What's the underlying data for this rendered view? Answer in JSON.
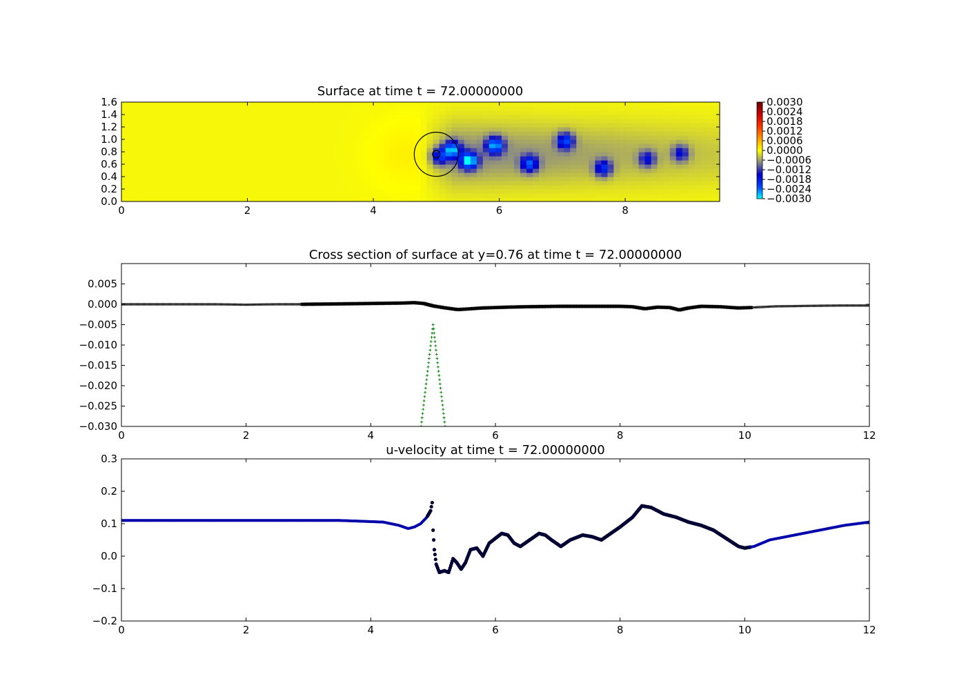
{
  "chart_data": [
    {
      "type": "heatmap",
      "title": "Surface at time t =    72.00000000",
      "xlim": [
        0,
        9.5
      ],
      "ylim": [
        0,
        1.6
      ],
      "xticks": [
        "0",
        "2",
        "4",
        "6",
        "8"
      ],
      "yticks": [
        "0.0",
        "0.2",
        "0.4",
        "0.6",
        "0.8",
        "1.0",
        "1.2",
        "1.4",
        "1.6"
      ],
      "colorbar": {
        "range": [
          -0.003,
          0.003
        ],
        "ticks": [
          "0.0030",
          "0.0024",
          "0.0018",
          "0.0012",
          "0.0006",
          "0.0000",
          "−0.0006",
          "−0.0012",
          "−0.0018",
          "−0.0024",
          "−0.0030"
        ],
        "colors": [
          "#00ffff",
          "#0044ff",
          "#0000cc",
          "#888888",
          "#ffff00",
          "#ff9900",
          "#ff3300",
          "#cc0000",
          "#660000"
        ]
      },
      "field": {
        "background": -5e-05,
        "wake_start_x": 4.7,
        "wake_end_x": 9.5,
        "vortices": [
          {
            "x": 5.05,
            "y": 0.73,
            "value": -0.0016
          },
          {
            "x": 5.25,
            "y": 0.84,
            "value": -0.0022
          },
          {
            "x": 5.52,
            "y": 0.66,
            "value": -0.0026
          },
          {
            "x": 5.93,
            "y": 0.91,
            "value": -0.0022
          },
          {
            "x": 6.48,
            "y": 0.61,
            "value": -0.0018
          },
          {
            "x": 7.05,
            "y": 0.98,
            "value": -0.0018
          },
          {
            "x": 7.65,
            "y": 0.54,
            "value": -0.0016
          },
          {
            "x": 8.35,
            "y": 0.69,
            "value": -0.0012
          },
          {
            "x": 8.88,
            "y": 0.78,
            "value": -0.0012
          }
        ],
        "circle": {
          "x": 5.0,
          "y": 0.76,
          "radius": 0.35
        },
        "inner_circle": {
          "x": 5.0,
          "y": 0.76,
          "radius": 0.06
        }
      }
    },
    {
      "type": "scatter",
      "title": "Cross section of surface at y=0.76 at time t =    72.00000000",
      "xlim": [
        0,
        12
      ],
      "ylim": [
        -0.03,
        0.01
      ],
      "xticks": [
        "0",
        "2",
        "4",
        "6",
        "8",
        "10",
        "12"
      ],
      "yticks": [
        "0.005",
        "0.000",
        "−0.005",
        "−0.010",
        "−0.015",
        "−0.020",
        "−0.025",
        "−0.030"
      ],
      "series": [
        {
          "marker": "x",
          "color": "#000000",
          "x": [
            0,
            0.5,
            1.0,
            1.5,
            2.0,
            2.5,
            2.9,
            3.5,
            4.0,
            4.5,
            4.7,
            4.85,
            5.0,
            5.2,
            5.4,
            5.6,
            5.8,
            6.0,
            6.2,
            6.5,
            7.0,
            7.5,
            8.0,
            8.2,
            8.4,
            8.6,
            8.8,
            8.95,
            9.1,
            9.3,
            9.6,
            9.9,
            10.1,
            10.5,
            11.0,
            11.5,
            12.0
          ],
          "y": [
            0.0,
            0.0,
            0.0,
            0.0,
            -0.0001,
            0.0,
            0.0,
            0.0001,
            0.0002,
            0.0003,
            0.0004,
            0.0002,
            -0.0004,
            -0.0009,
            -0.0013,
            -0.0011,
            -0.0009,
            -0.0008,
            -0.0007,
            -0.0006,
            -0.0005,
            -0.0005,
            -0.0005,
            -0.0006,
            -0.0011,
            -0.0007,
            -0.0008,
            -0.0014,
            -0.0009,
            -0.0005,
            -0.0006,
            -0.0009,
            -0.0008,
            -0.0005,
            -0.0004,
            -0.0003,
            -0.0003
          ]
        },
        {
          "marker": "+",
          "color": "#008000",
          "x": [
            4.8,
            4.84,
            4.88,
            4.92,
            4.96,
            5.0,
            5.04,
            5.08,
            5.12,
            5.16,
            5.2
          ],
          "y": [
            -0.031,
            -0.0258,
            -0.0206,
            -0.0154,
            -0.0102,
            -0.005,
            -0.0102,
            -0.0154,
            -0.0206,
            -0.0258,
            -0.031
          ]
        }
      ]
    },
    {
      "type": "scatter",
      "title": "u-velocity at time t =    72.00000000",
      "xlim": [
        0,
        12
      ],
      "ylim": [
        -0.2,
        0.3
      ],
      "xticks": [
        "0",
        "2",
        "4",
        "6",
        "8",
        "10",
        "12"
      ],
      "yticks": [
        "0.3",
        "0.2",
        "0.1",
        "0.0",
        "−0.1",
        "−0.2"
      ],
      "series": [
        {
          "marker": "o",
          "color": "#0000aa",
          "x": [
            0,
            1,
            2,
            3,
            3.5,
            3.8,
            4.2,
            4.45,
            4.6,
            4.7,
            4.8,
            4.9,
            4.96,
            4.985,
            5.0,
            5.02,
            5.05,
            5.1,
            5.18,
            5.25,
            5.32,
            5.38,
            5.45,
            5.52,
            5.6,
            5.7,
            5.8,
            5.9,
            6.0,
            6.1,
            6.2,
            6.3,
            6.4,
            6.55,
            6.7,
            6.8,
            6.9,
            7.05,
            7.2,
            7.4,
            7.55,
            7.7,
            7.85,
            8.0,
            8.2,
            8.35,
            8.5,
            8.7,
            8.9,
            9.1,
            9.3,
            9.5,
            9.7,
            9.9,
            10.0,
            10.15,
            10.4,
            10.8,
            11.2,
            11.6,
            12.0
          ],
          "y": [
            0.11,
            0.11,
            0.11,
            0.11,
            0.11,
            0.108,
            0.105,
            0.095,
            0.085,
            0.09,
            0.1,
            0.12,
            0.14,
            0.165,
            0.08,
            0.02,
            -0.025,
            -0.05,
            -0.045,
            -0.05,
            -0.008,
            -0.02,
            -0.04,
            -0.02,
            0.02,
            0.025,
            0.0,
            0.04,
            0.055,
            0.07,
            0.065,
            0.04,
            0.03,
            0.05,
            0.07,
            0.065,
            0.05,
            0.03,
            0.05,
            0.065,
            0.06,
            0.05,
            0.07,
            0.09,
            0.12,
            0.155,
            0.15,
            0.13,
            0.12,
            0.105,
            0.095,
            0.08,
            0.055,
            0.03,
            0.025,
            0.03,
            0.05,
            0.065,
            0.08,
            0.095,
            0.105
          ]
        }
      ]
    }
  ]
}
